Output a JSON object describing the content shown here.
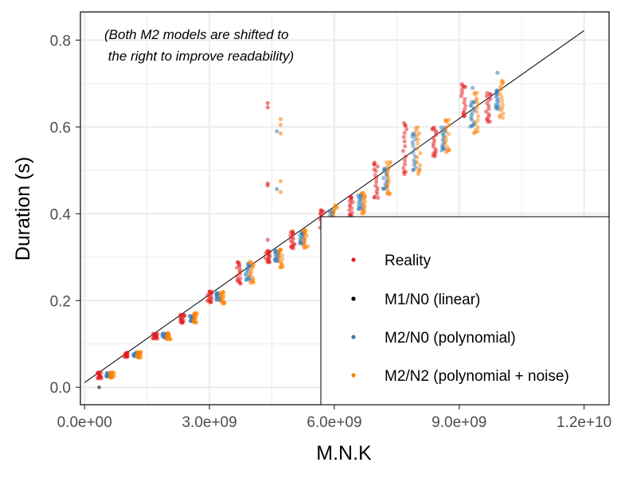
{
  "chart_data": {
    "type": "scatter",
    "title": "",
    "xlabel": "M.N.K",
    "ylabel": "Duration (s)",
    "xlim": [
      -100000000.0,
      12600000000.0
    ],
    "ylim": [
      -0.04,
      0.865
    ],
    "x_ticks": [
      0,
      3000000000.0,
      6000000000.0,
      9000000000.0,
      12000000000.0
    ],
    "x_tick_labels": [
      "0.0e+00",
      "3.0e+09",
      "6.0e+09",
      "9.0e+09",
      "1.2e+10"
    ],
    "y_ticks": [
      0.0,
      0.2,
      0.4,
      0.6,
      0.8
    ],
    "y_tick_labels": [
      "0.0",
      "0.2",
      "0.4",
      "0.6",
      "0.8"
    ],
    "grid": true,
    "annotation": [
      "(Both M2 models are shifted to",
      " the right to improve readability)"
    ],
    "legend_position": "bottom-right",
    "series": [
      {
        "name": "Reality",
        "color": "#e41a1c",
        "clusters": [
          {
            "x": 350000000.0,
            "y_min": 0.02,
            "y_max": 0.035
          },
          {
            "x": 1000000000.0,
            "y_min": 0.07,
            "y_max": 0.08
          },
          {
            "x": 1700000000.0,
            "y_min": 0.112,
            "y_max": 0.124
          },
          {
            "x": 2350000000.0,
            "y_min": 0.148,
            "y_max": 0.168
          },
          {
            "x": 3000000000.0,
            "y_min": 0.195,
            "y_max": 0.222
          },
          {
            "x": 3700000000.0,
            "y_min": 0.238,
            "y_max": 0.29
          },
          {
            "x": 4400000000.0,
            "y_min": 0.288,
            "y_max": 0.315
          },
          {
            "x": 5000000000.0,
            "y_min": 0.32,
            "y_max": 0.36
          },
          {
            "x": 5700000000.0,
            "y_min": 0.365,
            "y_max": 0.41
          },
          {
            "x": 6400000000.0,
            "y_min": 0.39,
            "y_max": 0.44
          },
          {
            "x": 7000000000.0,
            "y_min": 0.435,
            "y_max": 0.52
          },
          {
            "x": 7700000000.0,
            "y_min": 0.49,
            "y_max": 0.61
          },
          {
            "x": 8400000000.0,
            "y_min": 0.53,
            "y_max": 0.6
          },
          {
            "x": 9100000000.0,
            "y_min": 0.62,
            "y_max": 0.7
          },
          {
            "x": 9700000000.0,
            "y_min": 0.61,
            "y_max": 0.68
          }
        ],
        "outliers": [
          [
            4400000000.0,
            0.655
          ],
          [
            4400000000.0,
            0.645
          ],
          [
            4400000000.0,
            0.47
          ],
          [
            4400000000.0,
            0.465
          ],
          [
            4400000000.0,
            0.34
          ]
        ]
      },
      {
        "name": "M1/N0 (linear)",
        "color": "#000000",
        "line": {
          "x": [
            0,
            12000000000.0
          ],
          "y": [
            0.011,
            0.822
          ]
        },
        "points": [
          [
            350000000.0,
            0.0
          ]
        ]
      },
      {
        "name": "M2/N0 (polynomial)",
        "color": "#377eb8",
        "clusters": [
          {
            "x": 350000000.0,
            "y_min": 0.025,
            "y_max": 0.033
          },
          {
            "x": 1000000000.0,
            "y_min": 0.072,
            "y_max": 0.08
          },
          {
            "x": 1700000000.0,
            "y_min": 0.114,
            "y_max": 0.124
          },
          {
            "x": 2350000000.0,
            "y_min": 0.152,
            "y_max": 0.165
          },
          {
            "x": 3000000000.0,
            "y_min": 0.2,
            "y_max": 0.218
          },
          {
            "x": 3700000000.0,
            "y_min": 0.245,
            "y_max": 0.285
          },
          {
            "x": 4400000000.0,
            "y_min": 0.29,
            "y_max": 0.315
          },
          {
            "x": 5000000000.0,
            "y_min": 0.33,
            "y_max": 0.358
          },
          {
            "x": 5700000000.0,
            "y_min": 0.375,
            "y_max": 0.408
          },
          {
            "x": 6400000000.0,
            "y_min": 0.41,
            "y_max": 0.445
          },
          {
            "x": 7000000000.0,
            "y_min": 0.455,
            "y_max": 0.505
          },
          {
            "x": 7700000000.0,
            "y_min": 0.5,
            "y_max": 0.59
          },
          {
            "x": 8400000000.0,
            "y_min": 0.545,
            "y_max": 0.6
          },
          {
            "x": 9100000000.0,
            "y_min": 0.6,
            "y_max": 0.66
          },
          {
            "x": 9700000000.0,
            "y_min": 0.64,
            "y_max": 0.685
          }
        ],
        "outliers": [
          [
            4400000000.0,
            0.59
          ],
          [
            4400000000.0,
            0.457
          ],
          [
            9100000000.0,
            0.69
          ],
          [
            9700000000.0,
            0.725
          ]
        ]
      },
      {
        "name": "M2/N2 (polynomial + noise)",
        "color": "#ff7f00",
        "clusters": [
          {
            "x": 350000000.0,
            "y_min": 0.022,
            "y_max": 0.035
          },
          {
            "x": 1000000000.0,
            "y_min": 0.068,
            "y_max": 0.082
          },
          {
            "x": 1700000000.0,
            "y_min": 0.11,
            "y_max": 0.125
          },
          {
            "x": 2350000000.0,
            "y_min": 0.148,
            "y_max": 0.172
          },
          {
            "x": 3000000000.0,
            "y_min": 0.192,
            "y_max": 0.22
          },
          {
            "x": 3700000000.0,
            "y_min": 0.24,
            "y_max": 0.29
          },
          {
            "x": 4400000000.0,
            "y_min": 0.275,
            "y_max": 0.32
          },
          {
            "x": 5000000000.0,
            "y_min": 0.32,
            "y_max": 0.365
          },
          {
            "x": 5700000000.0,
            "y_min": 0.36,
            "y_max": 0.42
          },
          {
            "x": 6400000000.0,
            "y_min": 0.4,
            "y_max": 0.45
          },
          {
            "x": 7000000000.0,
            "y_min": 0.44,
            "y_max": 0.52
          },
          {
            "x": 7700000000.0,
            "y_min": 0.49,
            "y_max": 0.6
          },
          {
            "x": 8400000000.0,
            "y_min": 0.54,
            "y_max": 0.62
          },
          {
            "x": 9100000000.0,
            "y_min": 0.58,
            "y_max": 0.68
          },
          {
            "x": 9700000000.0,
            "y_min": 0.62,
            "y_max": 0.71
          }
        ],
        "outliers": [
          [
            4400000000.0,
            0.618
          ],
          [
            4400000000.0,
            0.605
          ],
          [
            4400000000.0,
            0.585
          ],
          [
            4400000000.0,
            0.475
          ],
          [
            4400000000.0,
            0.45
          ]
        ]
      }
    ]
  }
}
